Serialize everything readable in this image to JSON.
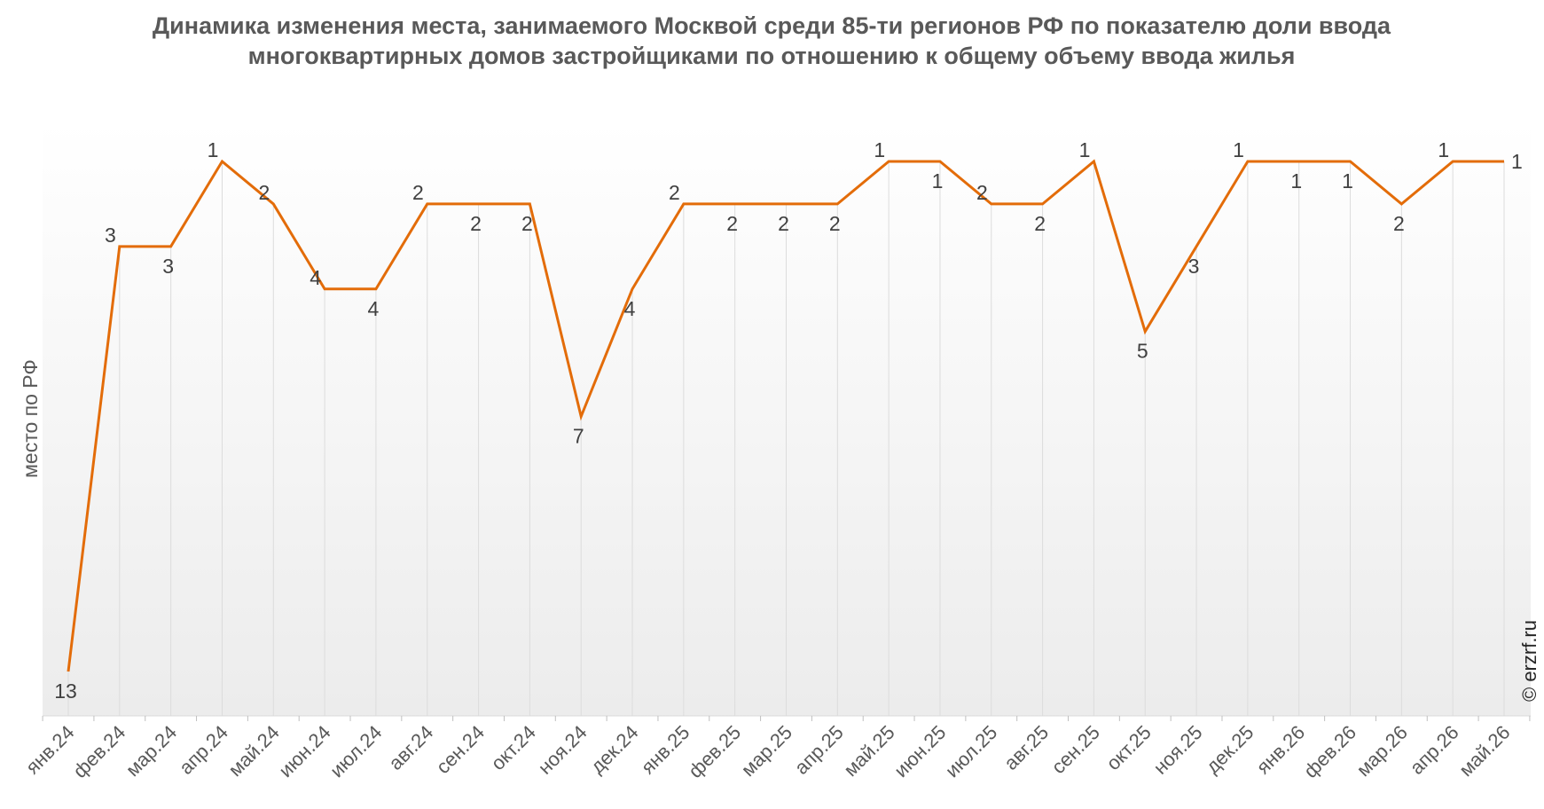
{
  "chart_data": {
    "type": "line",
    "title": "Динамика изменения места, занимаемого Москвой среди 85-ти регионов РФ по показателю доли ввода многоквартирных домов застройщиками по отношению к общему объему ввода жилья",
    "ylabel": "место по РФ",
    "xlabel": "",
    "categories": [
      "янв.24",
      "фев.24",
      "мар.24",
      "апр.24",
      "май.24",
      "июн.24",
      "июл.24",
      "авг.24",
      "сен.24",
      "окт.24",
      "ноя.24",
      "дек.24",
      "янв.25",
      "фев.25",
      "мар.25",
      "апр.25",
      "май.25",
      "июн.25",
      "июл.25",
      "авг.25",
      "сен.25",
      "окт.25",
      "ноя.25",
      "дек.25",
      "янв.26",
      "фев.26",
      "мар.26",
      "апр.26",
      "май.26"
    ],
    "series": [
      {
        "values": [
          13,
          3,
          3,
          1,
          2,
          4,
          4,
          2,
          2,
          2,
          7,
          4,
          2,
          2,
          2,
          2,
          1,
          1,
          2,
          2,
          1,
          5,
          3,
          1,
          1,
          1,
          2,
          1,
          1
        ],
        "color": "#E36C09"
      }
    ],
    "ylim": [
      1,
      13
    ],
    "y_reversed": true,
    "y_tick_labels_visible": false,
    "grid": "vertical",
    "legend": "none",
    "show_data_labels": true
  },
  "watermark": "© erzrf.ru"
}
